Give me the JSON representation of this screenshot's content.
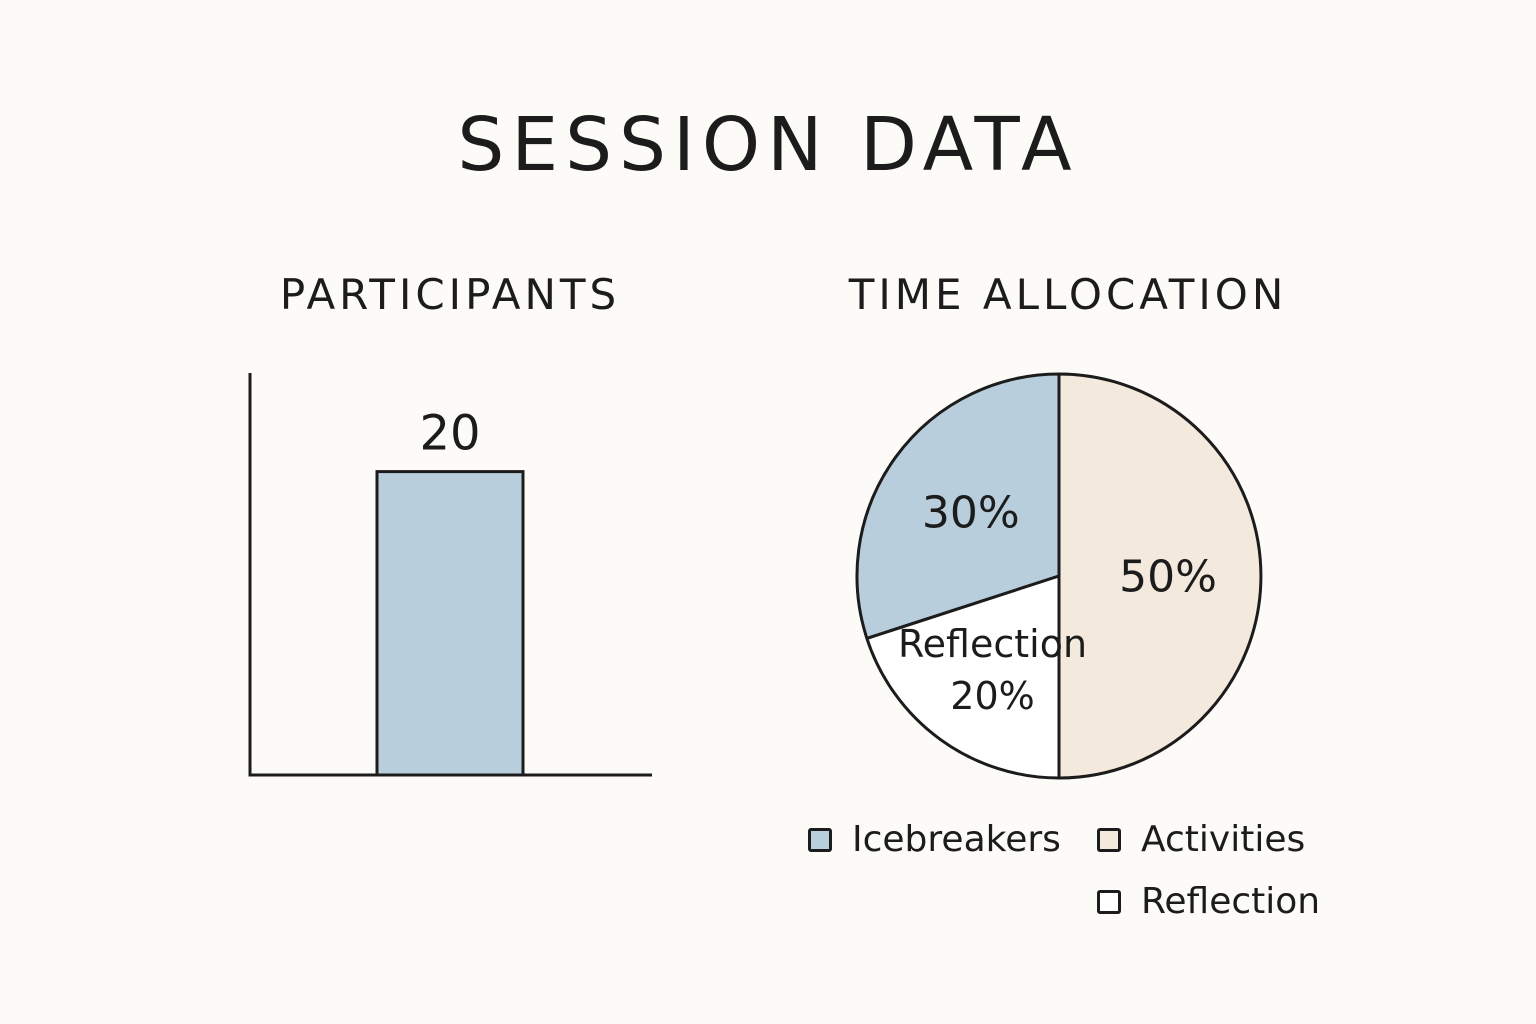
{
  "title": "SESSION DATA",
  "colors": {
    "icebreakers": "#b8cedc",
    "activities": "#f3e9dc",
    "reflection": "#ffffff",
    "stroke": "#1c1c1c",
    "background": "#fcfbf7"
  },
  "chart_data": [
    {
      "type": "bar",
      "title": "PARTICIPANTS",
      "categories": [
        ""
      ],
      "values": [
        20
      ],
      "data_labels": [
        "20"
      ],
      "ylim": [
        0,
        26.5
      ],
      "grid": false
    },
    {
      "type": "pie",
      "title": "TIME ALLOCATION",
      "slices": [
        {
          "name": "Icebreakers",
          "value": 30,
          "label": "30%",
          "color": "#b8cedc"
        },
        {
          "name": "Activities",
          "value": 50,
          "label": "50%",
          "color": "#f3e9dc"
        },
        {
          "name": "Reflection",
          "value": 20,
          "label": "Reflection\n20%",
          "color": "#ffffff"
        }
      ],
      "legend": [
        "Icebreakers",
        "Activities",
        "Reflection"
      ],
      "legend_position": "bottom"
    }
  ]
}
